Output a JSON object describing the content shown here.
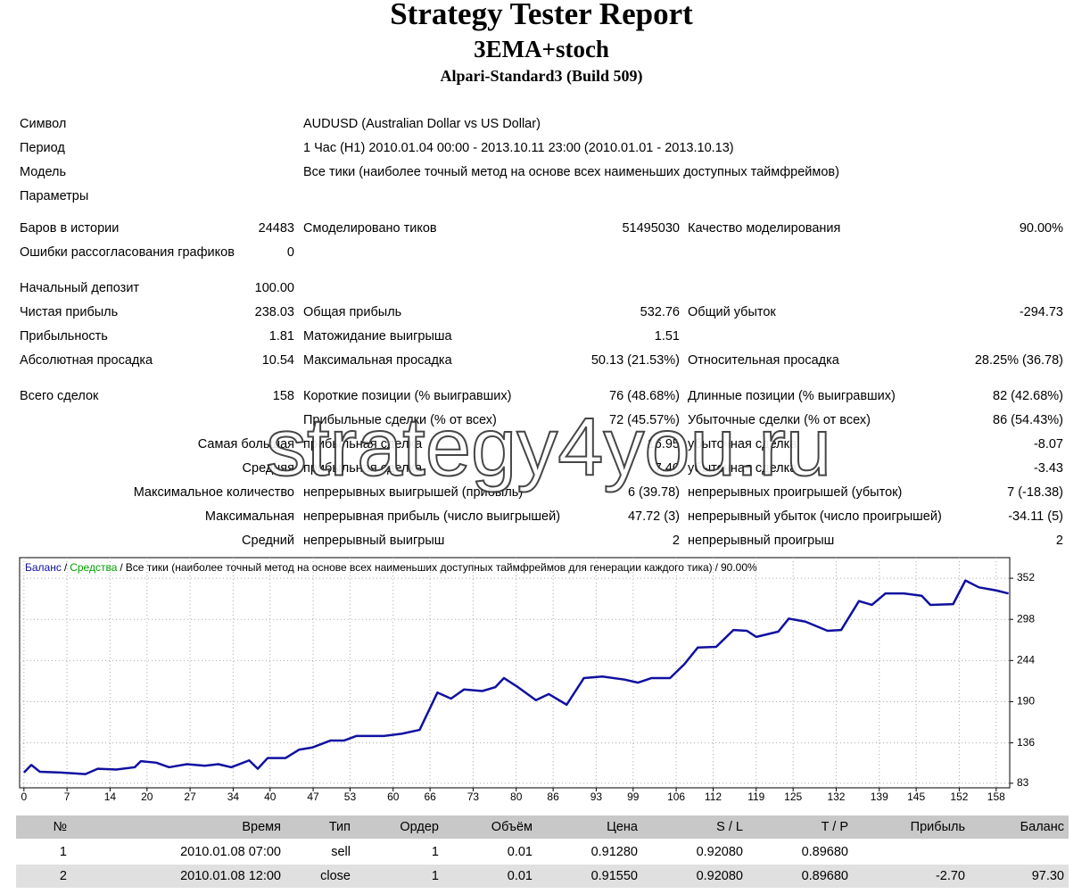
{
  "header": {
    "title": "Strategy Tester Report",
    "subtitle": "3EMA+stoch",
    "server": "Alpari-Standard3 (Build 509)"
  },
  "info": [
    [
      "Символ",
      "AUDUSD (Australian Dollar vs US Dollar)"
    ],
    [
      "Период",
      "1 Час (H1) 2010.01.04 00:00 - 2013.10.11 23:00 (2010.01.01 - 2013.10.13)"
    ],
    [
      "Модель",
      "Все тики (наиболее точный метод на основе всех наименьших доступных таймфреймов)"
    ],
    [
      "Параметры"
    ]
  ],
  "stats": [
    [
      "Баров в истории",
      "24483",
      "Смоделировано тиков",
      "51495030",
      "Качество моделирования",
      "90.00%"
    ],
    [
      "Ошибки рассогласования графиков",
      "0"
    ],
    [
      "Начальный депозит",
      "100.00"
    ],
    [
      "Чистая прибыль",
      "238.03",
      "Общая прибыль",
      "532.76",
      "Общий убыток",
      "-294.73"
    ],
    [
      "Прибыльность",
      "1.81",
      "Матожидание выигрыша",
      "1.51"
    ],
    [
      "Абсолютная просадка",
      "10.54",
      "Максимальная просадка",
      "50.13 (21.53%)",
      "Относительная просадка",
      "28.25% (36.78)"
    ],
    [
      "Всего сделок",
      "158",
      "Короткие позиции (% выигравших)",
      "76 (48.68%)",
      "Длинные позиции (% выигравших)",
      "82 (42.68%)"
    ],
    [
      null,
      null,
      "Прибыльные сделки (% от всех)",
      "72 (45.57%)",
      "Убыточные сделки (% от всех)",
      "86 (54.43%)"
    ],
    [
      "Самая большая",
      null,
      "прибыльная сделка",
      "16.95",
      "убыточная сделка",
      "-8.07"
    ],
    [
      "Средняя",
      null,
      "прибыльная сделка",
      "7.40",
      "убыточная сделка",
      "-3.43"
    ],
    [
      "Максимальное количество",
      null,
      "непрерывных выигрышей (прибыль)",
      "6 (39.78)",
      "непрерывных проигрышей (убыток)",
      "7 (-18.38)"
    ],
    [
      "Максимальная",
      null,
      "непрерывная прибыль (число выигрышей)",
      "47.72 (3)",
      "непрерывный убыток (число проигрышей)",
      "-34.11 (5)"
    ],
    [
      "Средний",
      null,
      "непрерывный выигрыш",
      "2",
      "непрерывный проигрыш",
      "2"
    ]
  ],
  "watermark": "strategy4you.ru",
  "chart_data": {
    "type": "line",
    "equity_label": "Средства",
    "equity_color": "#00a000",
    "separator": "/",
    "title": "Все тики (наиболее точный метод на основе всех наименьших доступных таймфреймов для генерации каждого тика)",
    "quality": "90.00%",
    "x": [
      0,
      1.2,
      2.6,
      6,
      10,
      12,
      15,
      18,
      19,
      21.5,
      23.6,
      26.5,
      29.4,
      31.6,
      33.7,
      36.6,
      38,
      39.6,
      42.5,
      44.7,
      46.9,
      49.8,
      52,
      54,
      58.5,
      61.4,
      64.3,
      67.2,
      69.4,
      71.5,
      74.5,
      76.6,
      78,
      80.3,
      83.2,
      85.3,
      88.2,
      91,
      94,
      97.6,
      99.8,
      102,
      105,
      107.3,
      109.5,
      112.5,
      115.3,
      117.5,
      119,
      122.6,
      124.3,
      127,
      130.6,
      132.8,
      135.7,
      137.8,
      140,
      143,
      145.9,
      147.3,
      151,
      153,
      155.2,
      158,
      160
    ],
    "series": [
      {
        "name": "Баланс",
        "color": "#1010a0",
        "values": [
          97,
          107,
          98,
          97,
          95,
          102,
          101,
          104,
          112,
          110,
          104,
          108,
          106,
          108,
          104,
          113,
          102,
          116,
          116,
          127,
          130,
          139,
          139,
          145,
          145,
          148,
          153,
          202,
          194,
          206,
          204,
          209,
          221,
          209,
          192,
          200,
          186,
          221,
          223,
          219,
          215,
          221,
          221,
          239,
          261,
          262,
          284,
          283,
          275,
          282,
          299,
          295,
          283,
          284,
          322,
          317,
          332,
          332,
          329,
          317,
          318,
          349,
          340,
          336,
          332
        ]
      }
    ],
    "xlim": [
      -0.7,
      160.2
    ],
    "ylim": [
      77,
      379
    ],
    "xticks": [
      0,
      7,
      14,
      20,
      27,
      34,
      40,
      47,
      53,
      60,
      66,
      73,
      80,
      86,
      93,
      99,
      106,
      112,
      119,
      125,
      132,
      139,
      145,
      152,
      158
    ],
    "yticks": [
      83,
      136,
      190,
      244,
      298,
      352
    ],
    "grid": true
  },
  "table": {
    "header": [
      "№",
      "Время",
      "Тип",
      "Ордер",
      "Объём",
      "Цена",
      "S / L",
      "T / P",
      "Прибыль",
      "Баланс"
    ],
    "rows": [
      [
        "1",
        "2010.01.08 07:00",
        "sell",
        "1",
        "0.01",
        "0.91280",
        "0.92080",
        "0.89680",
        null,
        null
      ],
      [
        "2",
        "2010.01.08 12:00",
        "close",
        "1",
        "0.01",
        "0.91550",
        "0.92080",
        "0.89680",
        "-2.70",
        "97.30"
      ]
    ]
  }
}
